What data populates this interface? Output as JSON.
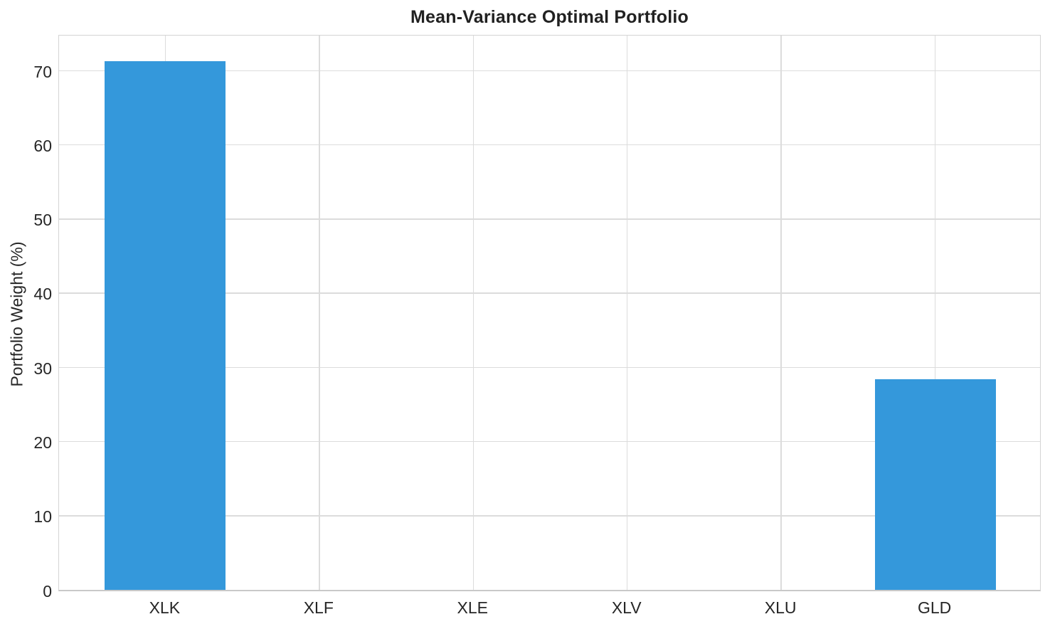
{
  "chart_data": {
    "type": "bar",
    "title": "Mean-Variance Optimal Portfolio",
    "xlabel": "",
    "ylabel": "Portfolio Weight (%)",
    "categories": [
      "XLK",
      "XLF",
      "XLE",
      "XLV",
      "XLU",
      "GLD"
    ],
    "values": [
      71.3,
      0,
      0,
      0,
      0,
      28.4
    ],
    "ylim": [
      0,
      75
    ],
    "yticks": [
      0,
      10,
      20,
      30,
      40,
      50,
      60,
      70
    ],
    "grid": "both",
    "legend": "none",
    "bar_color": "#3498db",
    "grid_color": "#dcdcdc",
    "spine_color": "#d4d4d4",
    "text_color": "#262626",
    "title_color": "#212121",
    "background_color": "#ffffff"
  }
}
